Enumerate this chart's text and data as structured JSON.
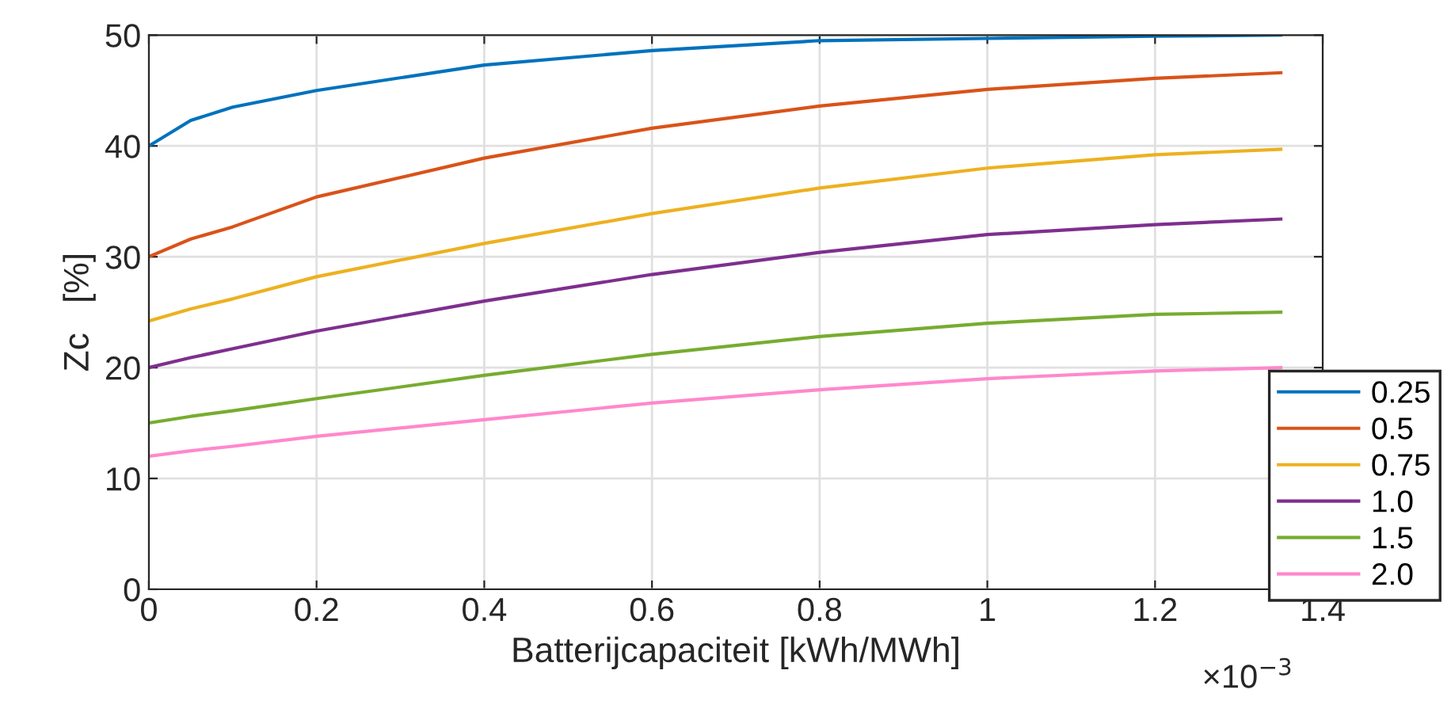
{
  "chart_data": {
    "type": "line",
    "xlabel": "Batterijcapaciteit [kWh/MWh]",
    "ylabel": "Zc   [%]",
    "x": [
      0,
      0.05,
      0.1,
      0.2,
      0.4,
      0.6,
      0.8,
      1,
      1.2,
      1.35
    ],
    "series": [
      {
        "name": "0.25",
        "color": "#0072bd",
        "values": [
          40,
          42.3,
          43.5,
          45.0,
          47.3,
          48.6,
          49.5,
          49.7,
          49.9,
          50
        ]
      },
      {
        "name": "0.5",
        "color": "#d95319",
        "values": [
          30,
          31.6,
          32.7,
          35.4,
          38.9,
          41.6,
          43.6,
          45.1,
          46.1,
          46.6
        ]
      },
      {
        "name": "0.75",
        "color": "#edb120",
        "values": [
          24.2,
          25.3,
          26.2,
          28.2,
          31.2,
          33.9,
          36.2,
          38.0,
          39.2,
          39.7
        ]
      },
      {
        "name": "1.0",
        "color": "#7e2f8e",
        "values": [
          20,
          20.9,
          21.7,
          23.3,
          26.0,
          28.4,
          30.4,
          32.0,
          32.9,
          33.4
        ]
      },
      {
        "name": "1.5",
        "color": "#77ac30",
        "values": [
          15,
          15.6,
          16.1,
          17.2,
          19.3,
          21.2,
          22.8,
          24.0,
          24.8,
          25.0
        ]
      },
      {
        "name": "2.0",
        "color": "#ff88cc",
        "values": [
          12,
          12.5,
          12.9,
          13.8,
          15.3,
          16.8,
          18.0,
          19.0,
          19.7,
          20.0
        ]
      }
    ],
    "xlim": [
      0,
      1.4
    ],
    "xticks": [
      0,
      0.2,
      0.4,
      0.6,
      0.8,
      1,
      1.2,
      1.4
    ],
    "ylim": [
      0,
      50
    ],
    "yticks": [
      0,
      10,
      20,
      30,
      40,
      50
    ],
    "annotations": [
      "×10$^{−3}$"
    ],
    "grid": true,
    "legend": "bottom right",
    "marker": "none",
    "line_style": "solid"
  }
}
